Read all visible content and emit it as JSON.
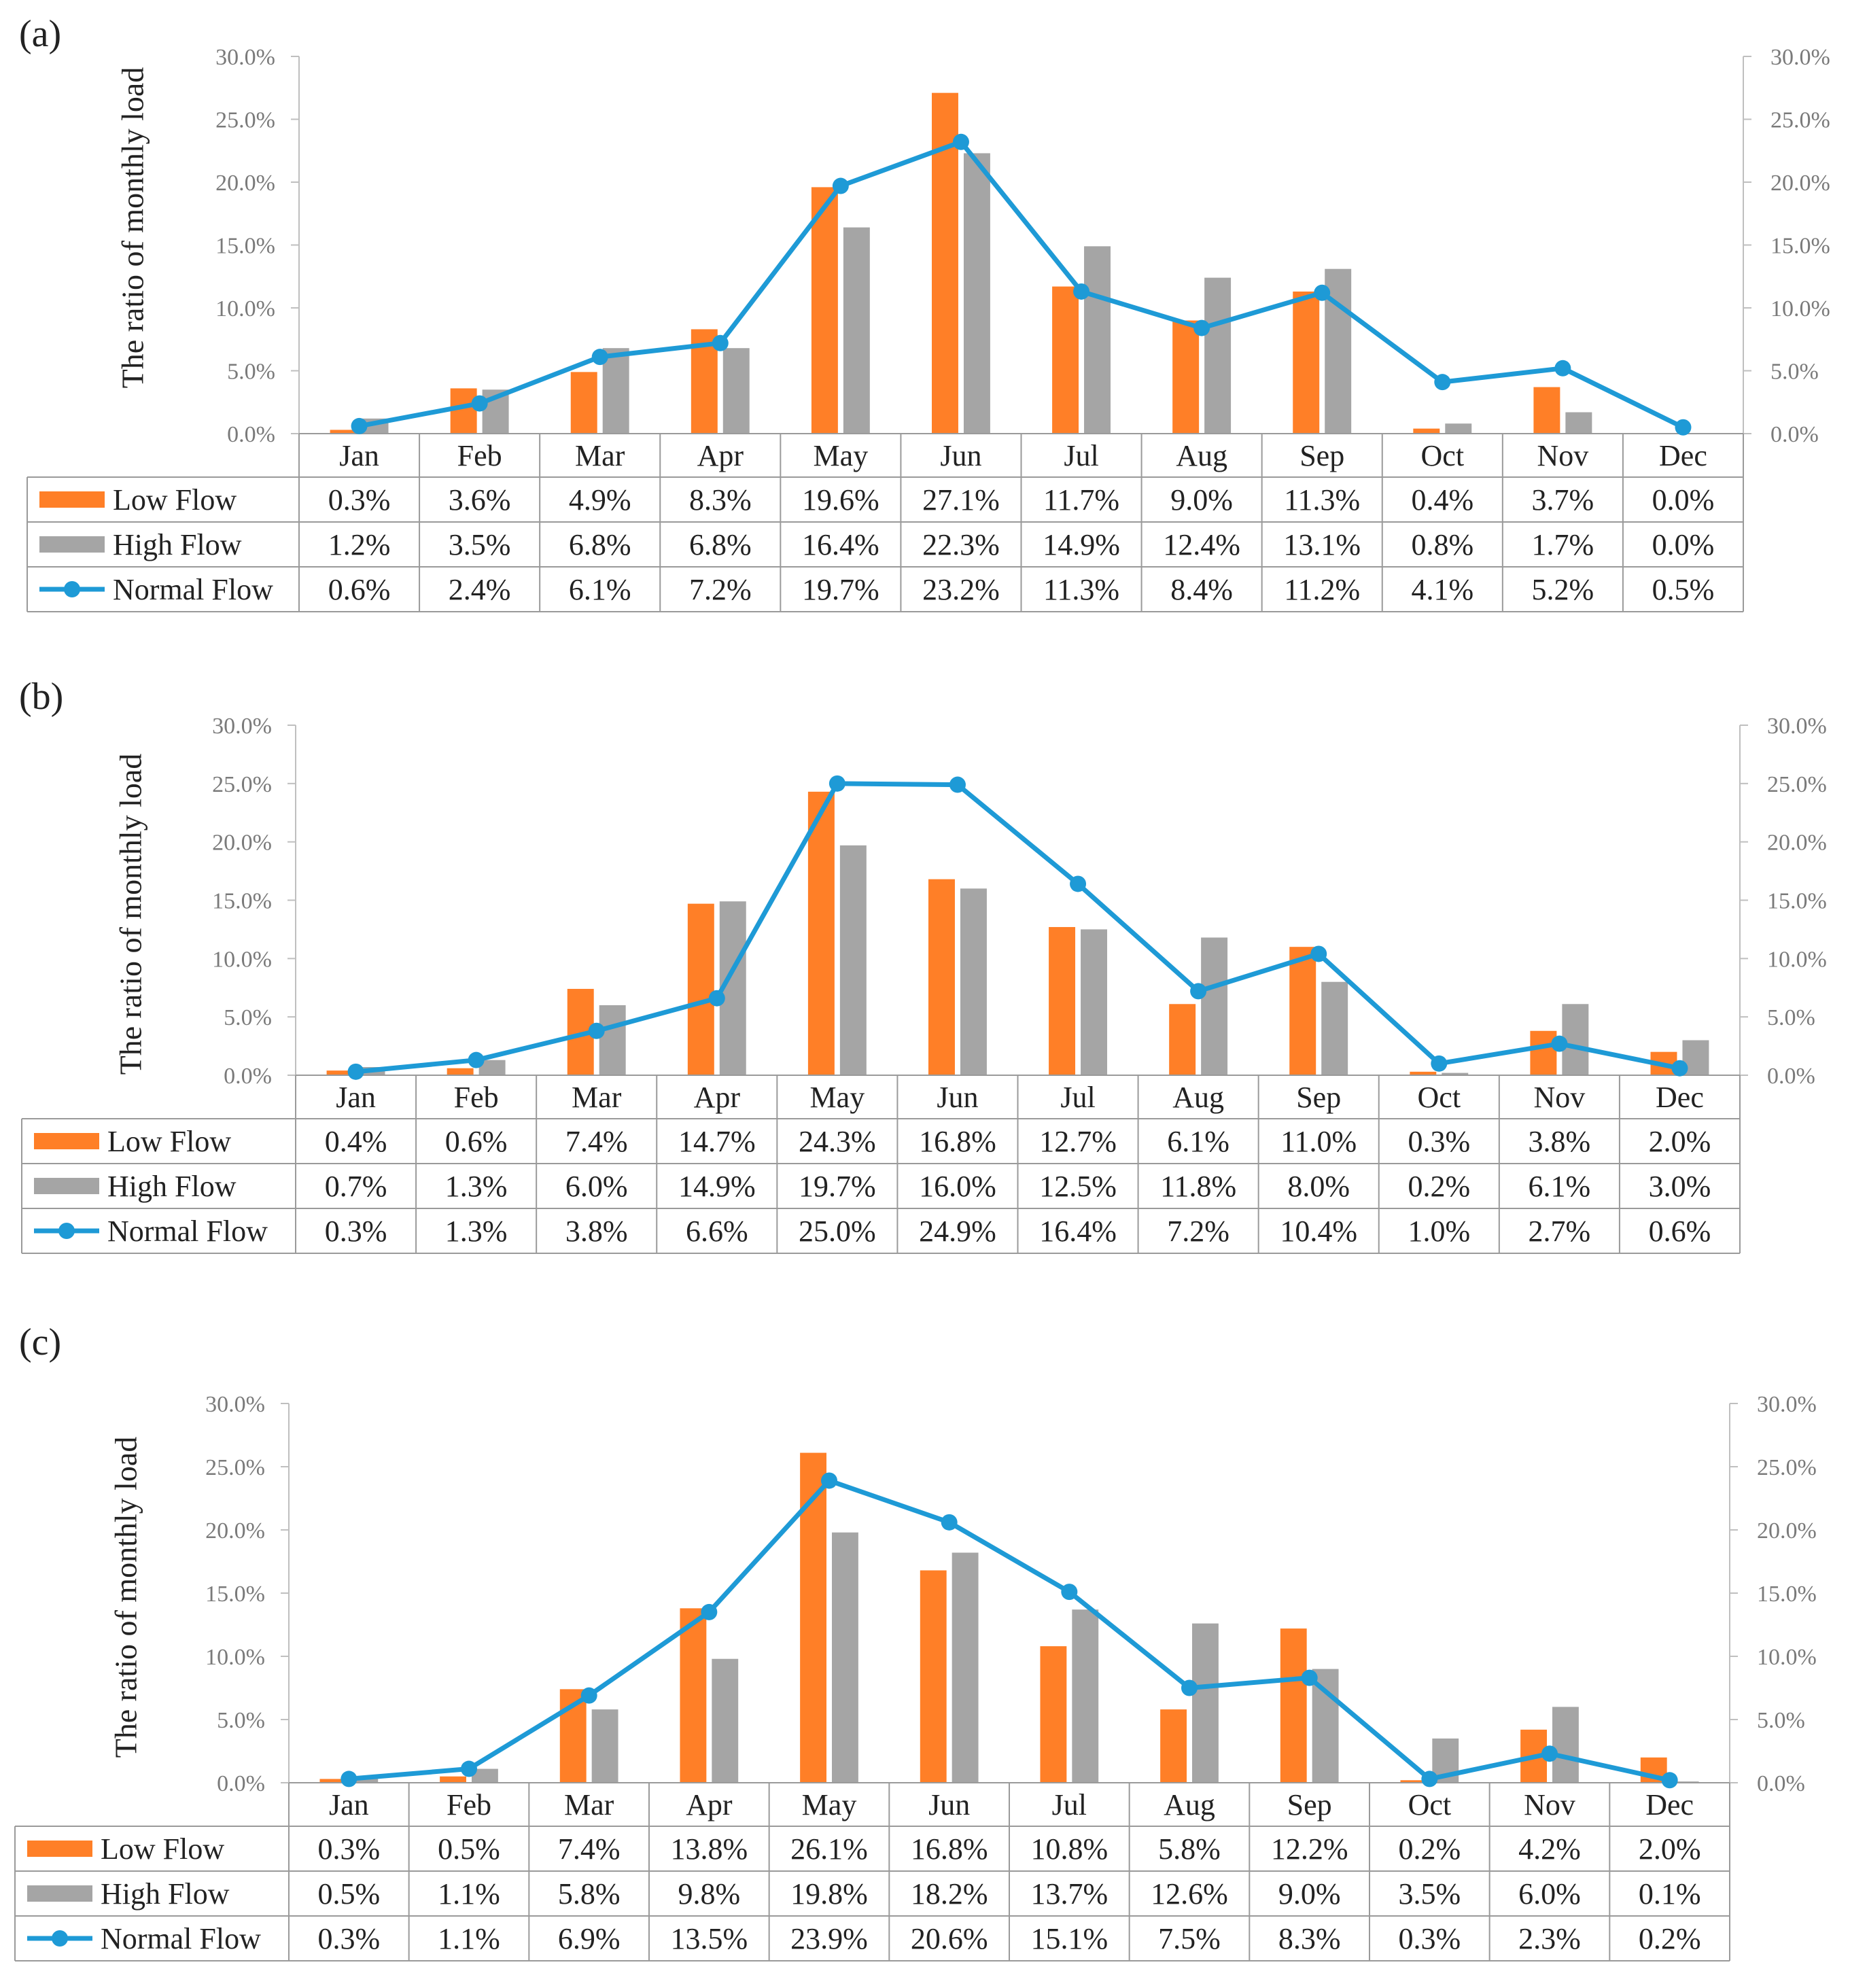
{
  "colors": {
    "low": "#FF7F27",
    "high": "#A5A5A5",
    "normal": "#1E9AD6",
    "axis": "#BFBFBF",
    "grid": "#9A9A9A"
  },
  "legend": {
    "low": "Low Flow",
    "high": "High Flow",
    "normal": "Normal Flow"
  },
  "chart_data": [
    {
      "label": "(a)",
      "type": "bar",
      "ylabel": "The ratio of monthly load",
      "ylim": [
        0,
        30
      ],
      "yticks": [
        "0.0%",
        "5.0%",
        "10.0%",
        "15.0%",
        "20.0%",
        "25.0%",
        "30.0%"
      ],
      "categories": [
        "Jan",
        "Feb",
        "Mar",
        "Apr",
        "May",
        "Jun",
        "Jul",
        "Aug",
        "Sep",
        "Oct",
        "Nov",
        "Dec"
      ],
      "series": [
        {
          "name": "Low Flow",
          "kind": "bar",
          "values": [
            0.3,
            3.6,
            4.9,
            8.3,
            19.6,
            27.1,
            11.7,
            9.0,
            11.3,
            0.4,
            3.7,
            0.0
          ],
          "labels": [
            "0.3%",
            "3.6%",
            "4.9%",
            "8.3%",
            "19.6%",
            "27.1%",
            "11.7%",
            "9.0%",
            "11.3%",
            "0.4%",
            "3.7%",
            "0.0%"
          ]
        },
        {
          "name": "High Flow",
          "kind": "bar",
          "values": [
            1.2,
            3.5,
            6.8,
            6.8,
            16.4,
            22.3,
            14.9,
            12.4,
            13.1,
            0.8,
            1.7,
            0.0
          ],
          "labels": [
            "1.2%",
            "3.5%",
            "6.8%",
            "6.8%",
            "16.4%",
            "22.3%",
            "14.9%",
            "12.4%",
            "13.1%",
            "0.8%",
            "1.7%",
            "0.0%"
          ]
        },
        {
          "name": "Normal Flow",
          "kind": "line",
          "values": [
            0.6,
            2.4,
            6.1,
            7.2,
            19.7,
            23.2,
            11.3,
            8.4,
            11.2,
            4.1,
            5.2,
            0.5
          ],
          "labels": [
            "0.6%",
            "2.4%",
            "6.1%",
            "7.2%",
            "19.7%",
            "23.2%",
            "11.3%",
            "8.4%",
            "11.2%",
            "4.1%",
            "5.2%",
            "0.5%"
          ]
        }
      ]
    },
    {
      "label": "(b)",
      "type": "bar",
      "ylabel": "The ratio of monthly load",
      "ylim": [
        0,
        30
      ],
      "yticks": [
        "0.0%",
        "5.0%",
        "10.0%",
        "15.0%",
        "20.0%",
        "25.0%",
        "30.0%"
      ],
      "categories": [
        "Jan",
        "Feb",
        "Mar",
        "Apr",
        "May",
        "Jun",
        "Jul",
        "Aug",
        "Sep",
        "Oct",
        "Nov",
        "Dec"
      ],
      "series": [
        {
          "name": "Low Flow",
          "kind": "bar",
          "values": [
            0.4,
            0.6,
            7.4,
            14.7,
            24.3,
            16.8,
            12.7,
            6.1,
            11.0,
            0.3,
            3.8,
            2.0
          ],
          "labels": [
            "0.4%",
            "0.6%",
            "7.4%",
            "14.7%",
            "24.3%",
            "16.8%",
            "12.7%",
            "6.1%",
            "11.0%",
            "0.3%",
            "3.8%",
            "2.0%"
          ]
        },
        {
          "name": "High Flow",
          "kind": "bar",
          "values": [
            0.7,
            1.3,
            6.0,
            14.9,
            19.7,
            16.0,
            12.5,
            11.8,
            8.0,
            0.2,
            6.1,
            3.0
          ],
          "labels": [
            "0.7%",
            "1.3%",
            "6.0%",
            "14.9%",
            "19.7%",
            "16.0%",
            "12.5%",
            "11.8%",
            "8.0%",
            "0.2%",
            "6.1%",
            "3.0%"
          ]
        },
        {
          "name": "Normal Flow",
          "kind": "line",
          "values": [
            0.3,
            1.3,
            3.8,
            6.6,
            25.0,
            24.9,
            16.4,
            7.2,
            10.4,
            1.0,
            2.7,
            0.6
          ],
          "labels": [
            "0.3%",
            "1.3%",
            "3.8%",
            "6.6%",
            "25.0%",
            "24.9%",
            "16.4%",
            "7.2%",
            "10.4%",
            "1.0%",
            "2.7%",
            "0.6%"
          ]
        }
      ]
    },
    {
      "label": "(c)",
      "type": "bar",
      "ylabel": "The ratio of monthly load",
      "ylim": [
        0,
        30
      ],
      "yticks": [
        "0.0%",
        "5.0%",
        "10.0%",
        "15.0%",
        "20.0%",
        "25.0%",
        "30.0%"
      ],
      "categories": [
        "Jan",
        "Feb",
        "Mar",
        "Apr",
        "May",
        "Jun",
        "Jul",
        "Aug",
        "Sep",
        "Oct",
        "Nov",
        "Dec"
      ],
      "series": [
        {
          "name": "Low Flow",
          "kind": "bar",
          "values": [
            0.3,
            0.5,
            7.4,
            13.8,
            26.1,
            16.8,
            10.8,
            5.8,
            12.2,
            0.2,
            4.2,
            2.0
          ],
          "labels": [
            "0.3%",
            "0.5%",
            "7.4%",
            "13.8%",
            "26.1%",
            "16.8%",
            "10.8%",
            "5.8%",
            "12.2%",
            "0.2%",
            "4.2%",
            "2.0%"
          ]
        },
        {
          "name": "High Flow",
          "kind": "bar",
          "values": [
            0.5,
            1.1,
            5.8,
            9.8,
            19.8,
            18.2,
            13.7,
            12.6,
            9.0,
            3.5,
            6.0,
            0.1
          ],
          "labels": [
            "0.5%",
            "1.1%",
            "5.8%",
            "9.8%",
            "19.8%",
            "18.2%",
            "13.7%",
            "12.6%",
            "9.0%",
            "3.5%",
            "6.0%",
            "0.1%"
          ]
        },
        {
          "name": "Normal Flow",
          "kind": "line",
          "values": [
            0.3,
            1.1,
            6.9,
            13.5,
            23.9,
            20.6,
            15.1,
            7.5,
            8.3,
            0.3,
            2.3,
            0.2
          ],
          "labels": [
            "0.3%",
            "1.1%",
            "6.9%",
            "13.5%",
            "23.9%",
            "20.6%",
            "15.1%",
            "7.5%",
            "8.3%",
            "0.3%",
            "2.3%",
            "0.2%"
          ]
        }
      ]
    }
  ]
}
